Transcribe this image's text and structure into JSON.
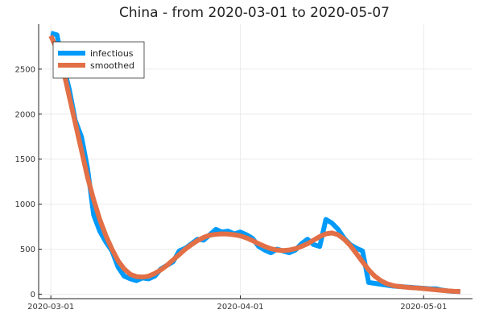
{
  "chart_data": {
    "type": "line",
    "title": "China - from 2020-03-01 to 2020-05-07",
    "xlabel": "",
    "ylabel": "",
    "x_start": "2020-03-01",
    "x_end": "2020-05-07",
    "xlim": [
      "2020-02-28",
      "2020-05-09"
    ],
    "ylim": [
      -50,
      3000
    ],
    "x_ticks": [
      "2020-03-01",
      "2020-04-01",
      "2020-05-01"
    ],
    "y_ticks": [
      0,
      500,
      1000,
      1500,
      2000,
      2500
    ],
    "grid": true,
    "legend_position": "top-left",
    "series": [
      {
        "name": "infectious",
        "color": "#009af9",
        "points": [
          [
            "2020-03-01",
            2900
          ],
          [
            "2020-03-02",
            2880
          ],
          [
            "2020-03-03",
            2550
          ],
          [
            "2020-03-04",
            2280
          ],
          [
            "2020-03-05",
            1930
          ],
          [
            "2020-03-06",
            1750
          ],
          [
            "2020-03-07",
            1400
          ],
          [
            "2020-03-08",
            880
          ],
          [
            "2020-03-09",
            700
          ],
          [
            "2020-03-10",
            580
          ],
          [
            "2020-03-11",
            480
          ],
          [
            "2020-03-12",
            300
          ],
          [
            "2020-03-13",
            200
          ],
          [
            "2020-03-14",
            170
          ],
          [
            "2020-03-15",
            150
          ],
          [
            "2020-03-16",
            180
          ],
          [
            "2020-03-17",
            170
          ],
          [
            "2020-03-18",
            200
          ],
          [
            "2020-03-19",
            280
          ],
          [
            "2020-03-20",
            320
          ],
          [
            "2020-03-21",
            360
          ],
          [
            "2020-03-22",
            480
          ],
          [
            "2020-03-23",
            510
          ],
          [
            "2020-03-24",
            560
          ],
          [
            "2020-03-25",
            610
          ],
          [
            "2020-03-26",
            600
          ],
          [
            "2020-03-27",
            660
          ],
          [
            "2020-03-28",
            720
          ],
          [
            "2020-03-29",
            690
          ],
          [
            "2020-03-30",
            700
          ],
          [
            "2020-03-31",
            670
          ],
          [
            "2020-04-01",
            690
          ],
          [
            "2020-04-02",
            660
          ],
          [
            "2020-04-03",
            620
          ],
          [
            "2020-04-04",
            530
          ],
          [
            "2020-04-05",
            490
          ],
          [
            "2020-04-06",
            460
          ],
          [
            "2020-04-07",
            500
          ],
          [
            "2020-04-08",
            480
          ],
          [
            "2020-04-09",
            460
          ],
          [
            "2020-04-10",
            490
          ],
          [
            "2020-04-11",
            560
          ],
          [
            "2020-04-12",
            610
          ],
          [
            "2020-04-13",
            550
          ],
          [
            "2020-04-14",
            530
          ],
          [
            "2020-04-15",
            830
          ],
          [
            "2020-04-16",
            790
          ],
          [
            "2020-04-17",
            720
          ],
          [
            "2020-04-18",
            620
          ],
          [
            "2020-04-19",
            550
          ],
          [
            "2020-04-20",
            510
          ],
          [
            "2020-04-21",
            480
          ],
          [
            "2020-04-22",
            130
          ],
          [
            "2020-04-23",
            120
          ],
          [
            "2020-04-24",
            110
          ],
          [
            "2020-04-25",
            100
          ],
          [
            "2020-04-26",
            90
          ],
          [
            "2020-04-27",
            85
          ],
          [
            "2020-04-28",
            80
          ],
          [
            "2020-04-29",
            75
          ],
          [
            "2020-04-30",
            70
          ],
          [
            "2020-05-01",
            65
          ],
          [
            "2020-05-02",
            60
          ],
          [
            "2020-05-03",
            60
          ],
          [
            "2020-05-04",
            45
          ],
          [
            "2020-05-05",
            35
          ],
          [
            "2020-05-06",
            30
          ],
          [
            "2020-05-07",
            28
          ]
        ]
      },
      {
        "name": "smoothed",
        "color": "#e26f46",
        "points": [
          [
            "2020-03-01",
            2870
          ],
          [
            "2020-03-02",
            2720
          ],
          [
            "2020-03-03",
            2500
          ],
          [
            "2020-03-04",
            2200
          ],
          [
            "2020-03-05",
            1900
          ],
          [
            "2020-03-06",
            1600
          ],
          [
            "2020-03-07",
            1300
          ],
          [
            "2020-03-08",
            1050
          ],
          [
            "2020-03-09",
            830
          ],
          [
            "2020-03-10",
            650
          ],
          [
            "2020-03-11",
            500
          ],
          [
            "2020-03-12",
            370
          ],
          [
            "2020-03-13",
            280
          ],
          [
            "2020-03-14",
            220
          ],
          [
            "2020-03-15",
            195
          ],
          [
            "2020-03-16",
            190
          ],
          [
            "2020-03-17",
            200
          ],
          [
            "2020-03-18",
            230
          ],
          [
            "2020-03-19",
            270
          ],
          [
            "2020-03-20",
            320
          ],
          [
            "2020-03-21",
            380
          ],
          [
            "2020-03-22",
            440
          ],
          [
            "2020-03-23",
            500
          ],
          [
            "2020-03-24",
            550
          ],
          [
            "2020-03-25",
            595
          ],
          [
            "2020-03-26",
            630
          ],
          [
            "2020-03-27",
            655
          ],
          [
            "2020-03-28",
            665
          ],
          [
            "2020-03-29",
            670
          ],
          [
            "2020-03-30",
            668
          ],
          [
            "2020-03-31",
            660
          ],
          [
            "2020-04-01",
            648
          ],
          [
            "2020-04-02",
            625
          ],
          [
            "2020-04-03",
            595
          ],
          [
            "2020-04-04",
            560
          ],
          [
            "2020-04-05",
            530
          ],
          [
            "2020-04-06",
            505
          ],
          [
            "2020-04-07",
            490
          ],
          [
            "2020-04-08",
            485
          ],
          [
            "2020-04-09",
            490
          ],
          [
            "2020-04-10",
            505
          ],
          [
            "2020-04-11",
            530
          ],
          [
            "2020-04-12",
            560
          ],
          [
            "2020-04-13",
            600
          ],
          [
            "2020-04-14",
            640
          ],
          [
            "2020-04-15",
            670
          ],
          [
            "2020-04-16",
            680
          ],
          [
            "2020-04-17",
            660
          ],
          [
            "2020-04-18",
            610
          ],
          [
            "2020-04-19",
            540
          ],
          [
            "2020-04-20",
            450
          ],
          [
            "2020-04-21",
            360
          ],
          [
            "2020-04-22",
            270
          ],
          [
            "2020-04-23",
            200
          ],
          [
            "2020-04-24",
            150
          ],
          [
            "2020-04-25",
            115
          ],
          [
            "2020-04-26",
            95
          ],
          [
            "2020-04-27",
            85
          ],
          [
            "2020-04-28",
            78
          ],
          [
            "2020-04-29",
            72
          ],
          [
            "2020-04-30",
            68
          ],
          [
            "2020-05-01",
            62
          ],
          [
            "2020-05-02",
            55
          ],
          [
            "2020-05-03",
            48
          ],
          [
            "2020-05-04",
            42
          ],
          [
            "2020-05-05",
            36
          ],
          [
            "2020-05-06",
            32
          ],
          [
            "2020-05-07",
            28
          ]
        ]
      }
    ]
  }
}
